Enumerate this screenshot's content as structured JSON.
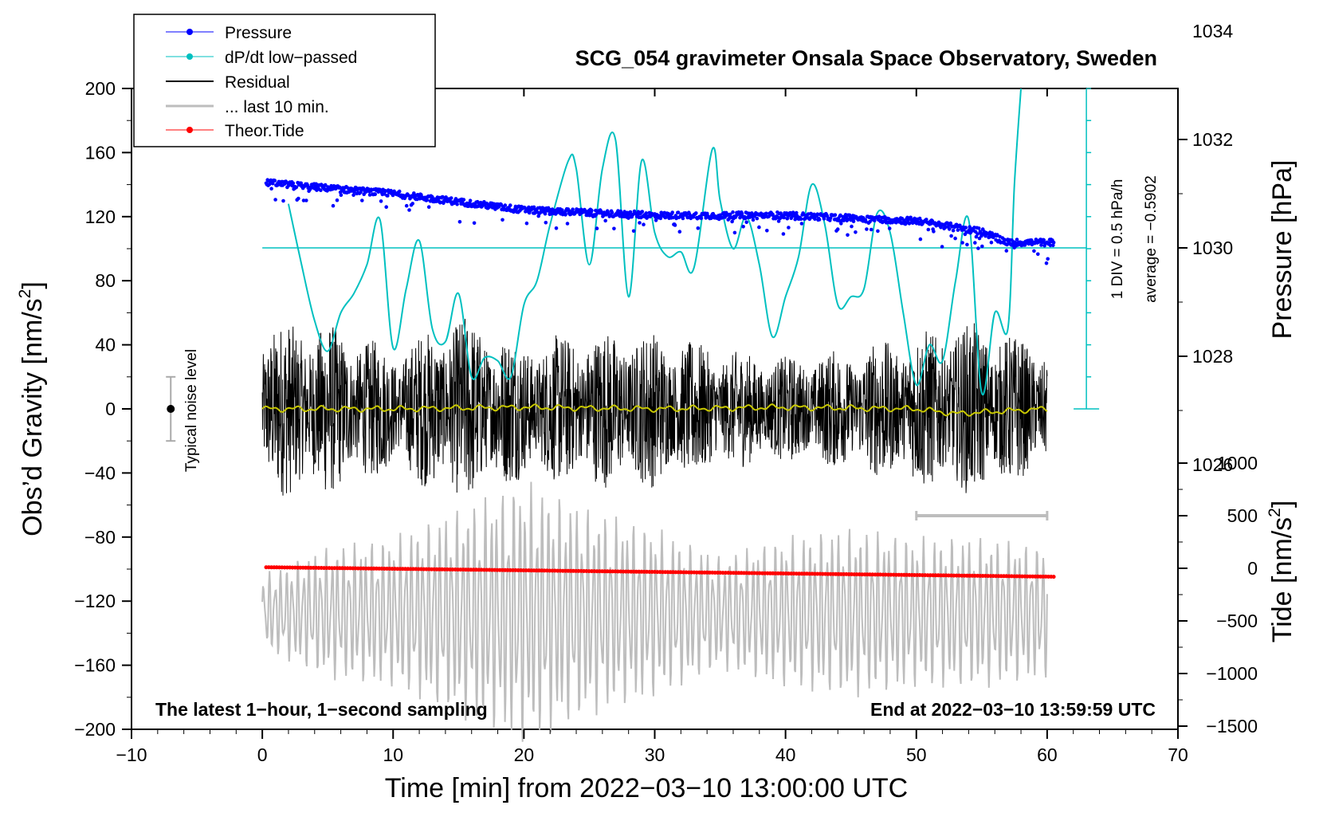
{
  "chart_data": {
    "type": "line",
    "title": "SCG_054 gravimeter Onsala Space Observatory, Sweden",
    "xlabel": "Time [min] from 2022−03−10 13:00:00 UTC",
    "ylabel_left": "Obs’d Gravity [nm/s",
    "ylabel_left_sup": "2",
    "ylabel_left_end": "]",
    "ylabel_right_top": "Pressure [hPa]",
    "ylabel_right_bottom": "Tide [nm/s",
    "ylabel_right_bottom_sup": "2",
    "ylabel_right_bottom_end": "]",
    "xlim": [
      -10,
      70
    ],
    "ylim": [
      -200,
      200
    ],
    "x_ticks": [
      -10,
      0,
      10,
      20,
      30,
      40,
      50,
      60,
      70
    ],
    "x_tick_labels": [
      "−10",
      "0",
      "10",
      "20",
      "30",
      "40",
      "50",
      "60",
      "70"
    ],
    "y_ticks": [
      -200,
      -160,
      -120,
      -80,
      -40,
      0,
      40,
      80,
      120,
      160,
      200
    ],
    "y_tick_labels": [
      "−200",
      "−160",
      "−120",
      "−80",
      "−40",
      "0",
      "40",
      "80",
      "120",
      "160",
      "200"
    ],
    "pressure_axis": {
      "ticks": [
        1026,
        1028,
        1030,
        1032,
        1034
      ],
      "labels": [
        "1026",
        "1028",
        "1030",
        "1032",
        "1034"
      ],
      "range": [
        1024,
        1036
      ]
    },
    "tide_axis": {
      "ticks": [
        -1500,
        -1000,
        -500,
        0,
        500,
        1000
      ],
      "labels": [
        "−1500",
        "−1000",
        "−500",
        "0",
        "500",
        "1000"
      ],
      "range": [
        -1500,
        1500
      ]
    },
    "legend": [
      {
        "label": "Pressure",
        "color": "#0000ff",
        "marker": true
      },
      {
        "label": "dP/dt low−passed",
        "color": "#00c0c0",
        "marker": true
      },
      {
        "label": "Residual",
        "color": "#000000",
        "marker": false
      },
      {
        "label": "... last 10 min.",
        "color": "#bdbdbd",
        "marker": false
      },
      {
        "label": "Theor.Tide",
        "color": "#ff0000",
        "marker": true
      }
    ],
    "legend_position": "top-left",
    "notes": {
      "left": "The latest 1−hour, 1−second sampling",
      "right": "End at 2022−03−10 13:59:59 UTC",
      "noise": "Typical noise level",
      "div": "1 DIV = 0.5 hPa/h",
      "average": "average = −0.5902"
    },
    "noise_level": {
      "x": -7,
      "center": 0,
      "half_range": 20
    },
    "dpdt_scale": {
      "x": 63,
      "zero_nm": 0,
      "top_nm": 200,
      "divisions": 10,
      "reference_pressure_hPa": 1030
    },
    "last10_bar": {
      "x_start": 50,
      "x_end": 60,
      "y_tide": 500
    },
    "series": [
      {
        "name": "Pressure",
        "unit": "hPa",
        "color": "#0000ff",
        "x": [
          0.3,
          10,
          20,
          30,
          40,
          50,
          55,
          57,
          60.5
        ],
        "values": [
          1031.2,
          1031.0,
          1030.7,
          1030.6,
          1030.6,
          1030.5,
          1030.3,
          1030.1,
          1030.1
        ]
      },
      {
        "name": "dP/dt low-passed",
        "unit": "nm/s2 scale",
        "color": "#00c0c0",
        "x": [
          2,
          3,
          4,
          5,
          6,
          7,
          8,
          9,
          10,
          11,
          12,
          13,
          14,
          15,
          16,
          17,
          18,
          19,
          20,
          21,
          22,
          23.4,
          24,
          25,
          26,
          27,
          28,
          29,
          30,
          31,
          32,
          33,
          34.4,
          35,
          36,
          37,
          38,
          39,
          40,
          41,
          42,
          43,
          44,
          45,
          46,
          47,
          48,
          49,
          50,
          51,
          52,
          53,
          54,
          55,
          56,
          57,
          57.5,
          58
        ],
        "values": [
          128,
          90,
          55,
          36,
          60,
          72,
          90,
          118,
          38,
          75,
          105,
          50,
          42,
          72,
          20,
          32,
          30,
          20,
          65,
          80,
          115,
          155,
          150,
          90,
          150,
          168,
          70,
          155,
          110,
          95,
          98,
          88,
          162,
          130,
          100,
          120,
          90,
          45,
          70,
          95,
          140,
          115,
          65,
          70,
          75,
          122,
          110,
          60,
          15,
          40,
          30,
          80,
          118,
          10,
          60,
          50,
          140,
          200
        ]
      },
      {
        "name": "Residual",
        "unit": "nm/s2",
        "color": "#000000",
        "x": [
          0,
          5,
          10,
          15,
          20,
          25,
          30,
          35,
          40,
          45,
          50,
          55,
          60
        ],
        "amplitude": [
          50,
          50,
          35,
          55,
          40,
          45,
          45,
          35,
          30,
          35,
          45,
          50,
          35
        ]
      },
      {
        "name": "Yellow smoothed residual",
        "unit": "nm/s2",
        "color": "#c8c800",
        "x": [
          0,
          10,
          20,
          30,
          40,
          50,
          53,
          60
        ],
        "values": [
          0,
          0,
          1,
          0,
          1,
          0,
          -3,
          0
        ]
      },
      {
        "name": "... last 10 min.",
        "unit": "nm/s2",
        "color": "#bdbdbd",
        "x": [
          0,
          5,
          10,
          15,
          20,
          25,
          30,
          35,
          40,
          45,
          50,
          55,
          60
        ],
        "amplitude": [
          20,
          35,
          40,
          55,
          70,
          55,
          45,
          30,
          40,
          45,
          40,
          40,
          35
        ],
        "center": -127
      },
      {
        "name": "Theor.Tide",
        "unit": "nm/s2",
        "color": "#ff0000",
        "x": [
          0.3,
          60.5
        ],
        "values": [
          10,
          -80
        ]
      }
    ]
  }
}
